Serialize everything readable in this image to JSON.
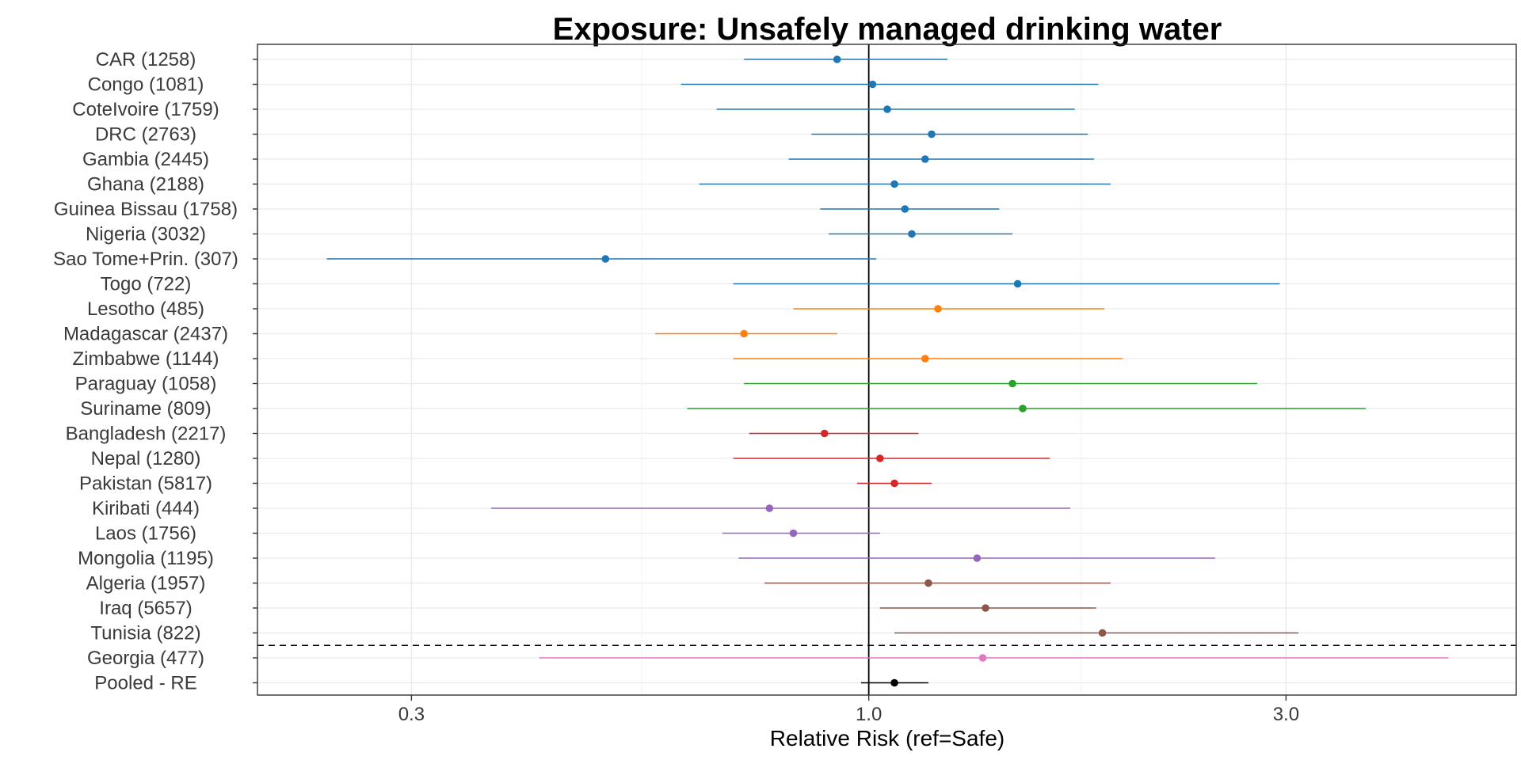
{
  "chart_data": {
    "type": "forest",
    "title": "Exposure: Unsafely managed drinking water",
    "xlabel": "Relative Risk (ref=Safe)",
    "ylabel": "",
    "x_scale": "log",
    "xlim": [
      0.2,
      5.5
    ],
    "x_ticks": [
      {
        "value": 0.3,
        "label": "0.3"
      },
      {
        "value": 1.0,
        "label": "1.0"
      },
      {
        "value": 3.0,
        "label": "3.0"
      }
    ],
    "x_minor_ticks": [
      0.55,
      1.75
    ],
    "reference_line": 1.0,
    "grid": true,
    "legend": "none",
    "separator_after_row": "Tunisia (822)",
    "colors": {
      "blue": "#1f77b4",
      "orange": "#ff7f0e",
      "green": "#2ca02c",
      "red": "#d62728",
      "purple": "#9467bd",
      "brown": "#8c564b",
      "pink": "#e377c2",
      "black": "#000000"
    },
    "rows": [
      {
        "label": "CAR (1258)",
        "rr": 0.92,
        "lo": 0.72,
        "hi": 1.23,
        "color": "blue"
      },
      {
        "label": "Congo (1081)",
        "rr": 1.01,
        "lo": 0.61,
        "hi": 1.83,
        "color": "blue"
      },
      {
        "label": "CoteIvoire (1759)",
        "rr": 1.05,
        "lo": 0.67,
        "hi": 1.72,
        "color": "blue"
      },
      {
        "label": "DRC (2763)",
        "rr": 1.18,
        "lo": 0.86,
        "hi": 1.78,
        "color": "blue"
      },
      {
        "label": "Gambia (2445)",
        "rr": 1.16,
        "lo": 0.81,
        "hi": 1.81,
        "color": "blue"
      },
      {
        "label": "Ghana (2188)",
        "rr": 1.07,
        "lo": 0.64,
        "hi": 1.89,
        "color": "blue"
      },
      {
        "label": "Guinea Bissau (1758)",
        "rr": 1.1,
        "lo": 0.88,
        "hi": 1.41,
        "color": "blue"
      },
      {
        "label": "Nigeria (3032)",
        "rr": 1.12,
        "lo": 0.9,
        "hi": 1.46,
        "color": "blue"
      },
      {
        "label": "Sao Tome+Prin. (307)",
        "rr": 0.5,
        "lo": 0.24,
        "hi": 1.02,
        "color": "blue"
      },
      {
        "label": "Togo (722)",
        "rr": 1.48,
        "lo": 0.7,
        "hi": 2.95,
        "color": "blue"
      },
      {
        "label": "Lesotho (485)",
        "rr": 1.2,
        "lo": 0.82,
        "hi": 1.86,
        "color": "orange"
      },
      {
        "label": "Madagascar (2437)",
        "rr": 0.72,
        "lo": 0.57,
        "hi": 0.92,
        "color": "orange"
      },
      {
        "label": "Zimbabwe (1144)",
        "rr": 1.16,
        "lo": 0.7,
        "hi": 1.95,
        "color": "orange"
      },
      {
        "label": "Paraguay (1058)",
        "rr": 1.46,
        "lo": 0.72,
        "hi": 2.78,
        "color": "green"
      },
      {
        "label": "Suriname (809)",
        "rr": 1.5,
        "lo": 0.62,
        "hi": 3.7,
        "color": "green"
      },
      {
        "label": "Bangladesh (2217)",
        "rr": 0.89,
        "lo": 0.73,
        "hi": 1.14,
        "color": "red"
      },
      {
        "label": "Nepal (1280)",
        "rr": 1.03,
        "lo": 0.7,
        "hi": 1.61,
        "color": "red"
      },
      {
        "label": "Pakistan (5817)",
        "rr": 1.07,
        "lo": 0.97,
        "hi": 1.18,
        "color": "red"
      },
      {
        "label": "Kiribati (444)",
        "rr": 0.77,
        "lo": 0.37,
        "hi": 1.7,
        "color": "purple"
      },
      {
        "label": "Laos (1756)",
        "rr": 0.82,
        "lo": 0.68,
        "hi": 1.03,
        "color": "purple"
      },
      {
        "label": "Mongolia (1195)",
        "rr": 1.33,
        "lo": 0.71,
        "hi": 2.49,
        "color": "purple"
      },
      {
        "label": "Algeria (1957)",
        "rr": 1.17,
        "lo": 0.76,
        "hi": 1.89,
        "color": "brown"
      },
      {
        "label": "Iraq (5657)",
        "rr": 1.36,
        "lo": 1.03,
        "hi": 1.82,
        "color": "brown"
      },
      {
        "label": "Tunisia (822)",
        "rr": 1.85,
        "lo": 1.07,
        "hi": 3.1,
        "color": "brown"
      },
      {
        "label": "Georgia (477)",
        "rr": 1.35,
        "lo": 0.42,
        "hi": 4.6,
        "color": "pink"
      },
      {
        "label": "Pooled - RE",
        "rr": 1.07,
        "lo": 0.98,
        "hi": 1.17,
        "color": "black"
      }
    ]
  }
}
